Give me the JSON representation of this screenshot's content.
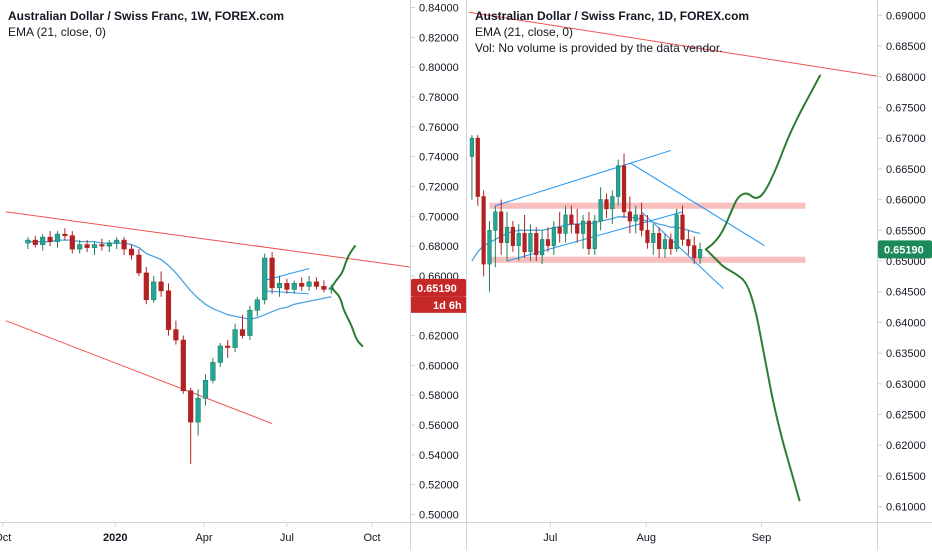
{
  "colors": {
    "up": "#26a69a",
    "up_dark": "#1e7f5c",
    "down": "#b22222",
    "ema": "#4aa3df",
    "trendline_red": "#ef5350",
    "channel_blue": "#2196f3",
    "zone_fill": "#f8b4b4",
    "projection_green": "#2e7d32",
    "price_label_red": "#c62828",
    "price_label_green": "#1b8a5a",
    "axis_text": "#131722",
    "grid_border": "#d1d4dc"
  },
  "chart_data": [
    {
      "type": "candlestick",
      "panel": "left",
      "title": "Australian Dollar / Swiss Franc, 1W, FOREX.com",
      "indicator_label": "EMA (21, close, 0)",
      "timeframe": "1W",
      "x_tick_labels": [
        "Oct",
        "2020",
        "Apr",
        "Jul",
        "Oct"
      ],
      "y_axis": {
        "min": 0.495,
        "max": 0.845,
        "tick_labels": [
          "0.84000",
          "0.82000",
          "0.80000",
          "0.78000",
          "0.76000",
          "0.74000",
          "0.72000",
          "0.70000",
          "0.68000",
          "0.66000",
          "0.64000",
          "0.62000",
          "0.60000",
          "0.58000",
          "0.56000",
          "0.54000",
          "0.52000",
          "0.50000"
        ],
        "tick_values": [
          0.84,
          0.82,
          0.8,
          0.78,
          0.76,
          0.74,
          0.72,
          0.7,
          0.68,
          0.66,
          0.64,
          0.62,
          0.6,
          0.58,
          0.56,
          0.54,
          0.52,
          0.5
        ]
      },
      "current_price_label": "0.65190",
      "countdown_label": "1d 6h",
      "candles": [
        {
          "o": 0.682,
          "h": 0.686,
          "l": 0.678,
          "c": 0.684
        },
        {
          "o": 0.684,
          "h": 0.687,
          "l": 0.679,
          "c": 0.681
        },
        {
          "o": 0.681,
          "h": 0.688,
          "l": 0.677,
          "c": 0.686
        },
        {
          "o": 0.686,
          "h": 0.69,
          "l": 0.68,
          "c": 0.683
        },
        {
          "o": 0.683,
          "h": 0.69,
          "l": 0.679,
          "c": 0.688
        },
        {
          "o": 0.688,
          "h": 0.692,
          "l": 0.684,
          "c": 0.687
        },
        {
          "o": 0.687,
          "h": 0.69,
          "l": 0.675,
          "c": 0.678
        },
        {
          "o": 0.678,
          "h": 0.684,
          "l": 0.675,
          "c": 0.681
        },
        {
          "o": 0.681,
          "h": 0.684,
          "l": 0.676,
          "c": 0.679
        },
        {
          "o": 0.679,
          "h": 0.683,
          "l": 0.674,
          "c": 0.681
        },
        {
          "o": 0.681,
          "h": 0.685,
          "l": 0.677,
          "c": 0.68
        },
        {
          "o": 0.68,
          "h": 0.684,
          "l": 0.676,
          "c": 0.682
        },
        {
          "o": 0.682,
          "h": 0.686,
          "l": 0.678,
          "c": 0.684
        },
        {
          "o": 0.684,
          "h": 0.686,
          "l": 0.674,
          "c": 0.678
        },
        {
          "o": 0.678,
          "h": 0.681,
          "l": 0.671,
          "c": 0.674
        },
        {
          "o": 0.674,
          "h": 0.678,
          "l": 0.66,
          "c": 0.662
        },
        {
          "o": 0.662,
          "h": 0.666,
          "l": 0.641,
          "c": 0.644
        },
        {
          "o": 0.644,
          "h": 0.66,
          "l": 0.642,
          "c": 0.656
        },
        {
          "o": 0.656,
          "h": 0.663,
          "l": 0.646,
          "c": 0.65
        },
        {
          "o": 0.65,
          "h": 0.655,
          "l": 0.62,
          "c": 0.624
        },
        {
          "o": 0.624,
          "h": 0.63,
          "l": 0.614,
          "c": 0.617
        },
        {
          "o": 0.617,
          "h": 0.62,
          "l": 0.581,
          "c": 0.583
        },
        {
          "o": 0.583,
          "h": 0.585,
          "l": 0.534,
          "c": 0.562
        },
        {
          "o": 0.562,
          "h": 0.584,
          "l": 0.553,
          "c": 0.578
        },
        {
          "o": 0.578,
          "h": 0.594,
          "l": 0.573,
          "c": 0.59
        },
        {
          "o": 0.59,
          "h": 0.605,
          "l": 0.588,
          "c": 0.602
        },
        {
          "o": 0.602,
          "h": 0.615,
          "l": 0.599,
          "c": 0.613
        },
        {
          "o": 0.613,
          "h": 0.617,
          "l": 0.605,
          "c": 0.612
        },
        {
          "o": 0.612,
          "h": 0.628,
          "l": 0.609,
          "c": 0.624
        },
        {
          "o": 0.624,
          "h": 0.634,
          "l": 0.618,
          "c": 0.62
        },
        {
          "o": 0.62,
          "h": 0.64,
          "l": 0.617,
          "c": 0.637
        },
        {
          "o": 0.637,
          "h": 0.646,
          "l": 0.633,
          "c": 0.644
        },
        {
          "o": 0.644,
          "h": 0.675,
          "l": 0.641,
          "c": 0.672
        },
        {
          "o": 0.672,
          "h": 0.676,
          "l": 0.648,
          "c": 0.652
        },
        {
          "o": 0.652,
          "h": 0.66,
          "l": 0.646,
          "c": 0.655
        },
        {
          "o": 0.655,
          "h": 0.658,
          "l": 0.648,
          "c": 0.651
        },
        {
          "o": 0.651,
          "h": 0.657,
          "l": 0.648,
          "c": 0.655
        },
        {
          "o": 0.655,
          "h": 0.659,
          "l": 0.65,
          "c": 0.653
        },
        {
          "o": 0.653,
          "h": 0.66,
          "l": 0.65,
          "c": 0.656
        },
        {
          "o": 0.656,
          "h": 0.659,
          "l": 0.651,
          "c": 0.653
        },
        {
          "o": 0.653,
          "h": 0.657,
          "l": 0.649,
          "c": 0.651
        },
        {
          "o": 0.651,
          "h": 0.654,
          "l": 0.648,
          "c": 0.652
        }
      ],
      "ema_21": [
        0.683,
        0.683,
        0.683,
        0.683,
        0.684,
        0.684,
        0.684,
        0.683,
        0.683,
        0.683,
        0.682,
        0.682,
        0.682,
        0.682,
        0.681,
        0.679,
        0.675,
        0.673,
        0.671,
        0.667,
        0.662,
        0.656,
        0.65,
        0.645,
        0.641,
        0.638,
        0.636,
        0.634,
        0.633,
        0.632,
        0.631,
        0.632,
        0.634,
        0.636,
        0.638,
        0.639,
        0.641,
        0.642,
        0.643,
        0.644,
        0.645,
        0.646
      ],
      "trendlines": [
        {
          "name": "upper-trendline",
          "x0": -3,
          "y0": 0.703,
          "x1": 59,
          "y1": 0.661
        },
        {
          "name": "lower-trendline",
          "x0": -3,
          "y0": 0.63,
          "x1": 33,
          "y1": 0.561
        },
        {
          "name": "pennant-upper",
          "x0": 32,
          "y0": 0.657,
          "x1": 38,
          "y1": 0.665
        },
        {
          "name": "pennant-lower",
          "x0": 32,
          "y0": 0.65,
          "x1": 38,
          "y1": 0.648
        }
      ],
      "projection_up": [
        [
          41,
          0.652
        ],
        [
          41.8,
          0.658
        ],
        [
          42.5,
          0.662
        ],
        [
          43,
          0.67
        ],
        [
          43.6,
          0.676
        ],
        [
          44.2,
          0.68
        ]
      ],
      "projection_down": [
        [
          41,
          0.652
        ],
        [
          42.2,
          0.646
        ],
        [
          42.6,
          0.638
        ],
        [
          43.2,
          0.632
        ],
        [
          43.8,
          0.626
        ],
        [
          44.4,
          0.617
        ],
        [
          45.2,
          0.613
        ]
      ]
    },
    {
      "type": "candlestick",
      "panel": "right",
      "title": "Australian Dollar / Swiss Franc, 1D, FOREX.com",
      "indicator_label": "EMA (21, close, 0)",
      "volume_note": "Vol: No volume is provided by the data vendor.",
      "timeframe": "1D",
      "x_tick_labels": [
        "Jul",
        "Aug",
        "Sep"
      ],
      "y_axis": {
        "min": 0.6075,
        "max": 0.6925,
        "tick_labels": [
          "0.69000",
          "0.68500",
          "0.68000",
          "0.67500",
          "0.67000",
          "0.66500",
          "0.66000",
          "0.65500",
          "0.65000",
          "0.64500",
          "0.64000",
          "0.63500",
          "0.63000",
          "0.62500",
          "0.62000",
          "0.61500",
          "0.61000"
        ],
        "tick_values": [
          0.69,
          0.685,
          0.68,
          0.675,
          0.67,
          0.665,
          0.66,
          0.655,
          0.65,
          0.645,
          0.64,
          0.635,
          0.63,
          0.625,
          0.62,
          0.615,
          0.61
        ]
      },
      "current_price_label": "0.65190",
      "candles": [
        {
          "o": 0.667,
          "h": 0.6705,
          "l": 0.66,
          "c": 0.67
        },
        {
          "o": 0.67,
          "h": 0.6705,
          "l": 0.659,
          "c": 0.6605
        },
        {
          "o": 0.6605,
          "h": 0.6615,
          "l": 0.6475,
          "c": 0.6495
        },
        {
          "o": 0.6495,
          "h": 0.6565,
          "l": 0.645,
          "c": 0.655
        },
        {
          "o": 0.655,
          "h": 0.659,
          "l": 0.649,
          "c": 0.658
        },
        {
          "o": 0.658,
          "h": 0.66,
          "l": 0.651,
          "c": 0.653
        },
        {
          "o": 0.653,
          "h": 0.658,
          "l": 0.65,
          "c": 0.6555
        },
        {
          "o": 0.6555,
          "h": 0.6565,
          "l": 0.6515,
          "c": 0.6525
        },
        {
          "o": 0.6525,
          "h": 0.656,
          "l": 0.65,
          "c": 0.6545
        },
        {
          "o": 0.6545,
          "h": 0.6575,
          "l": 0.6505,
          "c": 0.6515
        },
        {
          "o": 0.6515,
          "h": 0.656,
          "l": 0.65,
          "c": 0.6545
        },
        {
          "o": 0.6545,
          "h": 0.6555,
          "l": 0.65,
          "c": 0.651
        },
        {
          "o": 0.651,
          "h": 0.655,
          "l": 0.6495,
          "c": 0.6535
        },
        {
          "o": 0.6535,
          "h": 0.6555,
          "l": 0.6515,
          "c": 0.6525
        },
        {
          "o": 0.6525,
          "h": 0.6565,
          "l": 0.651,
          "c": 0.6555
        },
        {
          "o": 0.6555,
          "h": 0.658,
          "l": 0.653,
          "c": 0.6545
        },
        {
          "o": 0.6545,
          "h": 0.659,
          "l": 0.653,
          "c": 0.6575
        },
        {
          "o": 0.6575,
          "h": 0.659,
          "l": 0.6545,
          "c": 0.656
        },
        {
          "o": 0.656,
          "h": 0.6585,
          "l": 0.653,
          "c": 0.6545
        },
        {
          "o": 0.6545,
          "h": 0.6575,
          "l": 0.652,
          "c": 0.6565
        },
        {
          "o": 0.6565,
          "h": 0.658,
          "l": 0.651,
          "c": 0.652
        },
        {
          "o": 0.652,
          "h": 0.6575,
          "l": 0.651,
          "c": 0.6565
        },
        {
          "o": 0.6565,
          "h": 0.662,
          "l": 0.655,
          "c": 0.66
        },
        {
          "o": 0.66,
          "h": 0.661,
          "l": 0.657,
          "c": 0.6585
        },
        {
          "o": 0.6585,
          "h": 0.6615,
          "l": 0.656,
          "c": 0.6605
        },
        {
          "o": 0.6605,
          "h": 0.6665,
          "l": 0.659,
          "c": 0.6655
        },
        {
          "o": 0.6655,
          "h": 0.6675,
          "l": 0.657,
          "c": 0.658
        },
        {
          "o": 0.658,
          "h": 0.6605,
          "l": 0.6545,
          "c": 0.6565
        },
        {
          "o": 0.6565,
          "h": 0.659,
          "l": 0.6545,
          "c": 0.6575
        },
        {
          "o": 0.6575,
          "h": 0.6595,
          "l": 0.654,
          "c": 0.655
        },
        {
          "o": 0.655,
          "h": 0.6575,
          "l": 0.652,
          "c": 0.653
        },
        {
          "o": 0.653,
          "h": 0.656,
          "l": 0.651,
          "c": 0.6545
        },
        {
          "o": 0.6545,
          "h": 0.6555,
          "l": 0.6505,
          "c": 0.652
        },
        {
          "o": 0.652,
          "h": 0.6545,
          "l": 0.6505,
          "c": 0.6535
        },
        {
          "o": 0.6535,
          "h": 0.6545,
          "l": 0.651,
          "c": 0.652
        },
        {
          "o": 0.652,
          "h": 0.6585,
          "l": 0.6515,
          "c": 0.6575
        },
        {
          "o": 0.6575,
          "h": 0.659,
          "l": 0.6525,
          "c": 0.6535
        },
        {
          "o": 0.6535,
          "h": 0.655,
          "l": 0.651,
          "c": 0.6525
        },
        {
          "o": 0.6525,
          "h": 0.654,
          "l": 0.6495,
          "c": 0.6505
        },
        {
          "o": 0.6505,
          "h": 0.653,
          "l": 0.6495,
          "c": 0.6519
        }
      ],
      "ema_21": [
        0.65,
        0.6515,
        0.6525,
        0.653,
        0.6535,
        0.654,
        0.6545,
        0.6548,
        0.655,
        0.655,
        0.655,
        0.655,
        0.655,
        0.6552,
        0.6554,
        0.6556,
        0.6558,
        0.656,
        0.656,
        0.6561,
        0.6561,
        0.6562,
        0.6565,
        0.6567,
        0.6569,
        0.6572,
        0.6572,
        0.6571,
        0.657,
        0.6568,
        0.6565,
        0.6563,
        0.656,
        0.6558,
        0.6555,
        0.6555,
        0.6553,
        0.655,
        0.6547,
        0.6545
      ],
      "zones": [
        {
          "name": "resistance-zone",
          "x0": 3,
          "x1": 57,
          "y0": 0.6585,
          "y1": 0.6595
        },
        {
          "name": "support-zone",
          "x0": 3,
          "x1": 57,
          "y0": 0.6497,
          "y1": 0.6507
        }
      ],
      "trendlines": [
        {
          "name": "red-descending-line",
          "color": "red",
          "x0": -0.5,
          "y0": 0.6905,
          "x1": 80,
          "y1": 0.6785
        },
        {
          "name": "channel-up-upper",
          "color": "blue",
          "x0": 4,
          "y0": 0.659,
          "x1": 34,
          "y1": 0.668
        },
        {
          "name": "channel-up-lower",
          "color": "blue",
          "x0": 6,
          "y0": 0.65,
          "x1": 36,
          "y1": 0.658
        },
        {
          "name": "channel-down-upper",
          "color": "blue",
          "x0": 27,
          "y0": 0.666,
          "x1": 50,
          "y1": 0.6525
        },
        {
          "name": "channel-down-lower",
          "color": "blue",
          "x0": 29,
          "y0": 0.658,
          "x1": 43,
          "y1": 0.6455
        }
      ],
      "projection_up": [
        [
          40,
          0.6519
        ],
        [
          41.5,
          0.653
        ],
        [
          43,
          0.655
        ],
        [
          44.5,
          0.6585
        ],
        [
          45.5,
          0.6605
        ],
        [
          47,
          0.6612
        ],
        [
          48.5,
          0.66
        ],
        [
          50,
          0.661
        ],
        [
          52,
          0.665
        ],
        [
          54,
          0.67
        ],
        [
          56,
          0.674
        ],
        [
          58,
          0.6775
        ],
        [
          59.5,
          0.6802
        ]
      ],
      "projection_down": [
        [
          40,
          0.6519
        ],
        [
          41.5,
          0.6505
        ],
        [
          43,
          0.649
        ],
        [
          45,
          0.648
        ],
        [
          47,
          0.6465
        ],
        [
          48.5,
          0.642
        ],
        [
          49.5,
          0.637
        ],
        [
          50.5,
          0.632
        ],
        [
          51.5,
          0.627
        ],
        [
          53,
          0.621
        ],
        [
          54.5,
          0.616
        ],
        [
          56,
          0.611
        ]
      ]
    }
  ]
}
